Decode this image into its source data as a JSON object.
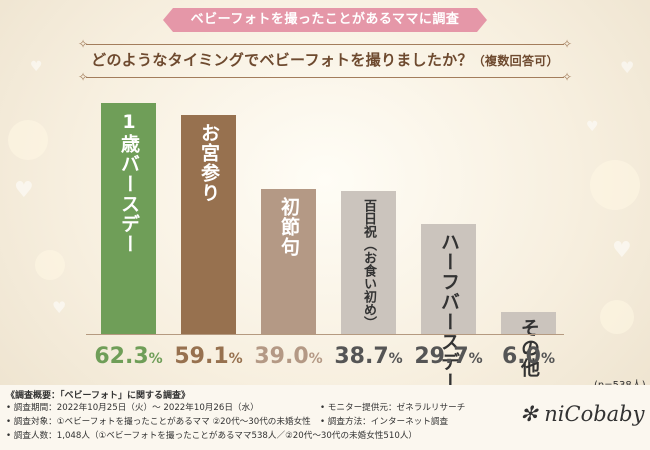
{
  "banner": "ベビーフォトを撮ったことがあるママに調査",
  "question": "どのようなタイミングでベビーフォトを撮りましたか？",
  "question_note": "（複数回答可）",
  "n_note": "(n=538人)",
  "footer": {
    "heading": "《調査概要：「ベビーフォト」に関する調査》",
    "period": "• 調査期間：2022年10月25日（火）～ 2022年10月26日（水）",
    "target": "• 調査対象：①ベビーフォトを撮ったことがあるママ ②20代～30代の未婚女性",
    "count": "• 調査人数：1,048人（①ベビーフォトを撮ったことがあるママ538人／②20代～30代の未婚女性510人）",
    "provider": "• モニター提供元：ゼネラルリサーチ",
    "method": "• 調査方法：インターネット調査",
    "logo": "✻ niCobaby ✻"
  },
  "colors": {
    "bar1": "#6f9e58",
    "bar2": "#97714f",
    "bar3": "#b49985",
    "bar_rest": "#cbc4bd",
    "banner": "#e597a8",
    "question": "#6e4a2f"
  },
  "chart_data": {
    "type": "bar",
    "title": "どのようなタイミングでベビーフォトを撮りましたか？（複数回答可）",
    "categories": [
      "1歳バースデー",
      "お宮参り",
      "初節句",
      "百日祝（お食い初め）",
      "ハーフバースデー",
      "その他"
    ],
    "values": [
      62.3,
      59.1,
      39.0,
      38.7,
      29.7,
      6.0
    ],
    "value_labels": [
      "62.3%",
      "59.1%",
      "39.0%",
      "38.7%",
      "29.7%",
      "6.0%"
    ],
    "unit": "%",
    "ylim": [
      0,
      70
    ],
    "xlabel": "",
    "ylabel": "",
    "grid": false,
    "legend": "none"
  }
}
